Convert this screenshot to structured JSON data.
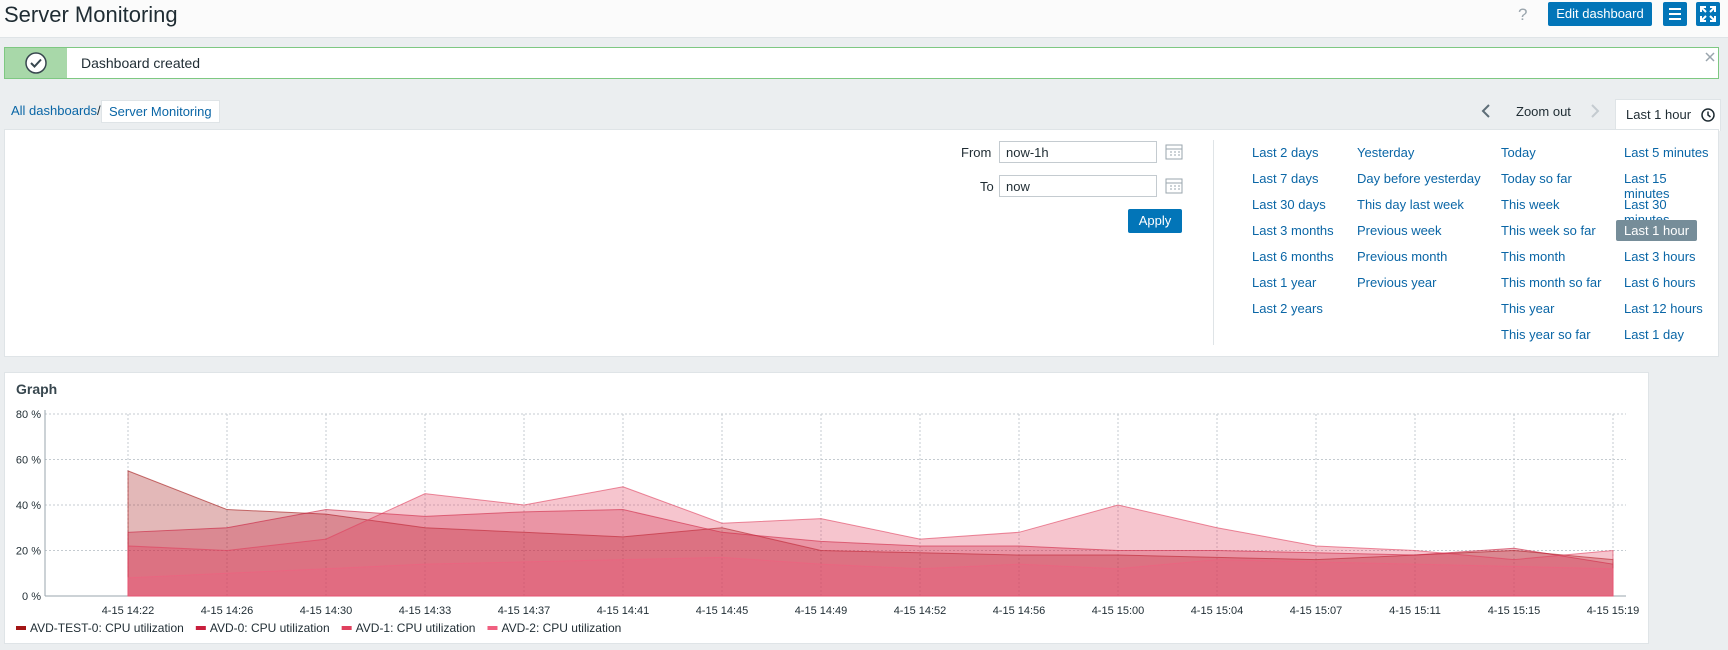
{
  "header": {
    "title": "Server Monitoring",
    "help": "?",
    "edit_button": "Edit dashboard"
  },
  "message": {
    "text": "Dashboard created"
  },
  "breadcrumbs": [
    "All dashboards",
    "Server Monitoring"
  ],
  "time_nav": {
    "zoom_out": "Zoom out",
    "current": "Last 1 hour"
  },
  "time_form": {
    "from_label": "From",
    "from_value": "now-1h",
    "to_label": "To",
    "to_value": "now",
    "apply": "Apply"
  },
  "quick_ranges": [
    [
      "Last 2 days",
      "Last 7 days",
      "Last 30 days",
      "Last 3 months",
      "Last 6 months",
      "Last 1 year",
      "Last 2 years"
    ],
    [
      "Yesterday",
      "Day before yesterday",
      "This day last week",
      "Previous week",
      "Previous month",
      "Previous year"
    ],
    [
      "Today",
      "Today so far",
      "This week",
      "This week so far",
      "This month",
      "This month so far",
      "This year",
      "This year so far"
    ],
    [
      "Last 5 minutes",
      "Last 15 minutes",
      "Last 30 minutes",
      "Last 1 hour",
      "Last 3 hours",
      "Last 6 hours",
      "Last 12 hours",
      "Last 1 day"
    ]
  ],
  "widget": {
    "title": "Graph"
  },
  "chart_data": {
    "type": "area",
    "categories": [
      "4-15 14:22",
      "4-15 14:26",
      "4-15 14:30",
      "4-15 14:33",
      "4-15 14:37",
      "4-15 14:41",
      "4-15 14:45",
      "4-15 14:49",
      "4-15 14:52",
      "4-15 14:56",
      "4-15 15:00",
      "4-15 15:04",
      "4-15 15:07",
      "4-15 15:11",
      "4-15 15:15",
      "4-15 15:19"
    ],
    "series": [
      {
        "name": "AVD-TEST-0: CPU utilization",
        "color": "#a31515",
        "values": [
          55,
          38,
          36,
          30,
          28,
          26,
          30,
          20,
          19,
          18,
          18,
          17,
          16,
          18,
          20,
          16
        ]
      },
      {
        "name": "AVD-0: CPU utilization",
        "color": "#c81e3c",
        "values": [
          28,
          30,
          38,
          35,
          37,
          38,
          28,
          24,
          22,
          22,
          20,
          20,
          19,
          18,
          21,
          14
        ]
      },
      {
        "name": "AVD-1: CPU utilization",
        "color": "#e0405e",
        "values": [
          22,
          20,
          25,
          45,
          40,
          48,
          32,
          34,
          25,
          28,
          40,
          30,
          22,
          20,
          16,
          20
        ]
      },
      {
        "name": "AVD-2: CPU utilization",
        "color": "#f06080",
        "values": [
          8,
          10,
          12,
          14,
          15,
          16,
          17,
          14,
          12,
          14,
          12,
          16,
          15,
          14,
          13,
          12
        ]
      }
    ],
    "ylim": [
      0,
      80
    ],
    "yticks": [
      {
        "value": 0,
        "label": "0 %"
      },
      {
        "value": 20,
        "label": "20 %"
      },
      {
        "value": 40,
        "label": "40 %"
      },
      {
        "value": 60,
        "label": "60 %"
      },
      {
        "value": 80,
        "label": "80 %"
      }
    ],
    "grid": true
  }
}
